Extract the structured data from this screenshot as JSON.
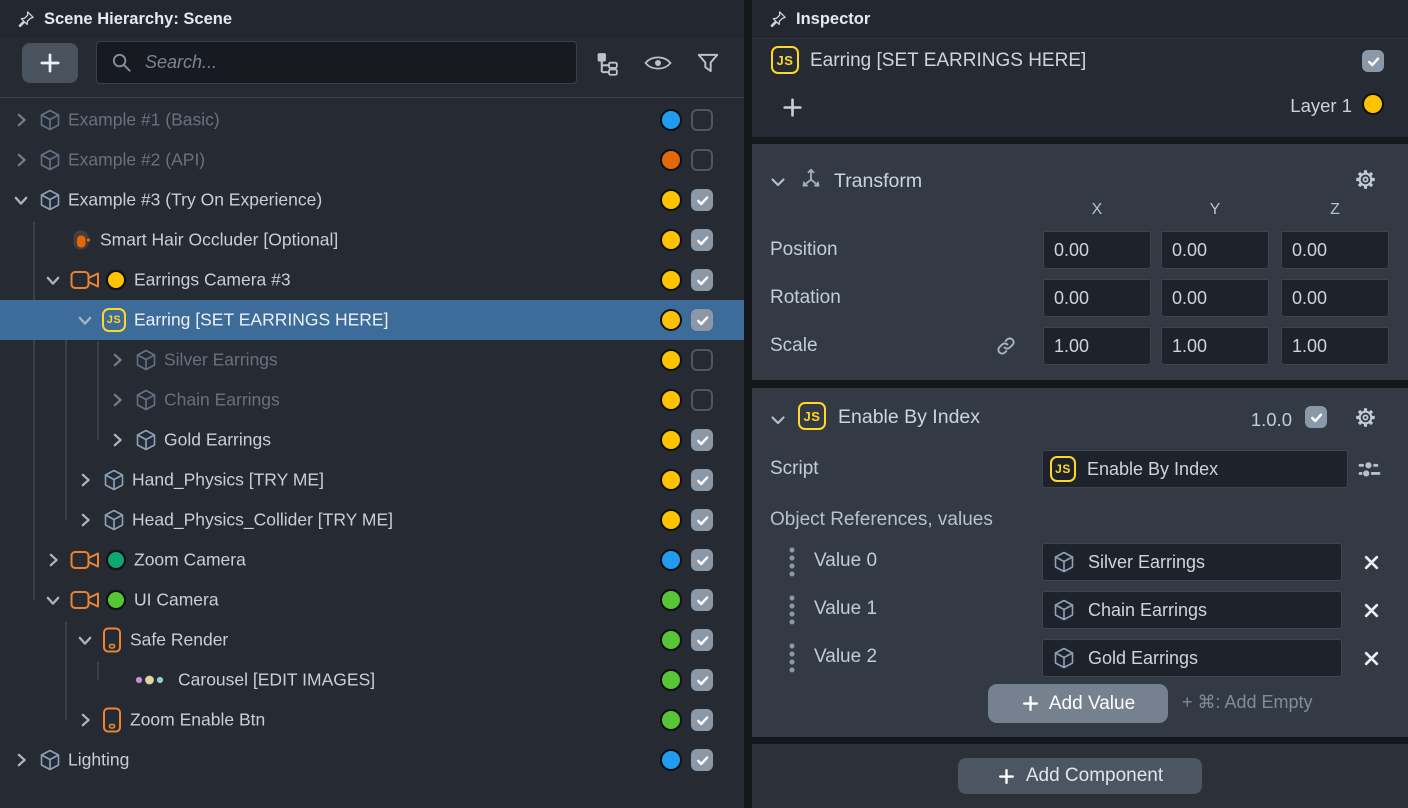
{
  "colors": {
    "accent_blue": "#1f9ced",
    "accent_orange": "#e2690b",
    "accent_yellow": "#fdc300",
    "accent_green": "#56c636",
    "accent_teal": "#0fa573",
    "selected_row": "#3d6c9b",
    "js_badge": "#ffd824"
  },
  "scene_hierarchy": {
    "title": "Scene Hierarchy: Scene",
    "toolbar": {
      "add_button_icon": "plus-icon",
      "search_placeholder": "Search...",
      "icons": [
        "tree-view-icon",
        "eye-icon",
        "filter-icon"
      ]
    },
    "rows": [
      {
        "label": "Example #1 (Basic)",
        "depth": 0,
        "chevron": "collapsed",
        "icon": "cube",
        "inline_dot": null,
        "dot": "blue",
        "checked": false,
        "disabled": true,
        "selected": false
      },
      {
        "label": "Example #2 (API)",
        "depth": 0,
        "chevron": "collapsed",
        "icon": "cube",
        "inline_dot": null,
        "dot": "orange",
        "checked": false,
        "disabled": true,
        "selected": false
      },
      {
        "label": "Example #3 (Try On Experience)",
        "depth": 0,
        "chevron": "expanded",
        "icon": "cube",
        "inline_dot": null,
        "dot": "yellow",
        "checked": true,
        "disabled": false,
        "selected": false
      },
      {
        "label": "Smart Hair Occluder [Optional]",
        "depth": 1,
        "chevron": "none",
        "icon": "person",
        "inline_dot": null,
        "dot": "yellow",
        "checked": true,
        "disabled": false,
        "selected": false
      },
      {
        "label": "Earrings Camera #3",
        "depth": 1,
        "chevron": "expanded",
        "icon": "camera",
        "inline_dot": "yellow",
        "dot": "yellow",
        "checked": true,
        "disabled": false,
        "selected": false
      },
      {
        "label": "Earring [SET EARRINGS HERE]",
        "depth": 2,
        "chevron": "expanded",
        "icon": "js",
        "inline_dot": null,
        "dot": "yellow",
        "checked": true,
        "disabled": false,
        "selected": true
      },
      {
        "label": "Silver Earrings",
        "depth": 3,
        "chevron": "collapsed",
        "icon": "cube",
        "inline_dot": null,
        "dot": "yellow",
        "checked": false,
        "disabled": true,
        "selected": false
      },
      {
        "label": "Chain Earrings",
        "depth": 3,
        "chevron": "collapsed",
        "icon": "cube",
        "inline_dot": null,
        "dot": "yellow",
        "checked": false,
        "disabled": true,
        "selected": false
      },
      {
        "label": "Gold Earrings",
        "depth": 3,
        "chevron": "collapsed",
        "icon": "cube",
        "inline_dot": null,
        "dot": "yellow",
        "checked": true,
        "disabled": false,
        "selected": false
      },
      {
        "label": "Hand_Physics [TRY ME]",
        "depth": 2,
        "chevron": "collapsed",
        "icon": "cube",
        "inline_dot": null,
        "dot": "yellow",
        "checked": true,
        "disabled": false,
        "selected": false
      },
      {
        "label": "Head_Physics_Collider [TRY ME]",
        "depth": 2,
        "chevron": "collapsed",
        "icon": "cube",
        "inline_dot": null,
        "dot": "yellow",
        "checked": true,
        "disabled": false,
        "selected": false
      },
      {
        "label": "Zoom Camera",
        "depth": 1,
        "chevron": "collapsed",
        "icon": "camera",
        "inline_dot": "teal",
        "dot": "blue",
        "checked": true,
        "disabled": false,
        "selected": false
      },
      {
        "label": "UI Camera",
        "depth": 1,
        "chevron": "expanded",
        "icon": "camera",
        "inline_dot": "green",
        "dot": "green",
        "checked": true,
        "disabled": false,
        "selected": false
      },
      {
        "label": "Safe Render",
        "depth": 2,
        "chevron": "expanded",
        "icon": "screen",
        "inline_dot": null,
        "dot": "green",
        "checked": true,
        "disabled": false,
        "selected": false
      },
      {
        "label": "Carousel [EDIT IMAGES]",
        "depth": 3,
        "chevron": "none",
        "icon": "carousel",
        "inline_dot": null,
        "dot": "green",
        "checked": true,
        "disabled": false,
        "selected": false
      },
      {
        "label": "Zoom Enable Btn",
        "depth": 2,
        "chevron": "collapsed",
        "icon": "screen",
        "inline_dot": null,
        "dot": "green",
        "checked": true,
        "disabled": false,
        "selected": false
      },
      {
        "label": "Lighting",
        "depth": 0,
        "chevron": "collapsed",
        "icon": "cube",
        "inline_dot": null,
        "dot": "blue",
        "checked": true,
        "disabled": false,
        "selected": false
      }
    ]
  },
  "inspector": {
    "title": "Inspector",
    "object_header": {
      "icon": "js-badge-icon",
      "name": "Earring [SET EARRINGS HERE]",
      "enabled": true
    },
    "layer_row": {
      "label": "Layer 1",
      "dot": "yellow"
    },
    "transform": {
      "title": "Transform",
      "columns": [
        "X",
        "Y",
        "Z"
      ],
      "rows": [
        {
          "label": "Position",
          "values": [
            "0.00",
            "0.00",
            "0.00"
          ],
          "linked": false
        },
        {
          "label": "Rotation",
          "values": [
            "0.00",
            "0.00",
            "0.00"
          ],
          "linked": false
        },
        {
          "label": "Scale",
          "values": [
            "1.00",
            "1.00",
            "1.00"
          ],
          "linked": true
        }
      ]
    },
    "script_component": {
      "title": "Enable By Index",
      "version": "1.0.0",
      "enabled": true,
      "script_label": "Script",
      "script_value": "Enable By Index",
      "references_label": "Object References, values",
      "values": [
        {
          "label": "Value 0",
          "value": "Silver Earrings"
        },
        {
          "label": "Value 1",
          "value": "Chain Earrings"
        },
        {
          "label": "Value 2",
          "value": "Gold Earrings"
        }
      ],
      "add_value_label": "Add Value",
      "add_empty_hint": "+ ⌘: Add Empty"
    },
    "add_component_label": "Add Component"
  }
}
